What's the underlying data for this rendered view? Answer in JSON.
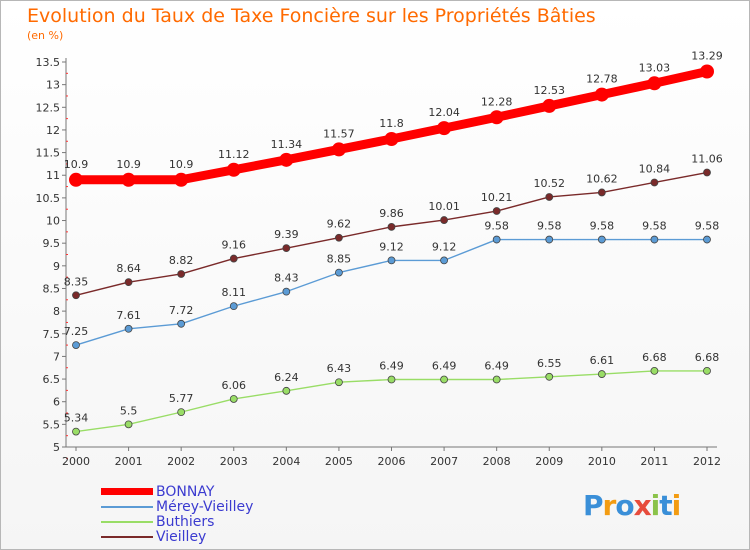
{
  "title": "Evolution du Taux de Taxe Foncière sur les Propriétés Bâties",
  "subtitle": "(en %)",
  "logo": "Proxiti",
  "chart_data": {
    "type": "line",
    "title": "Evolution du Taux de Taxe Foncière sur les Propriétés Bâties",
    "ylabel": "(en %)",
    "xlabel": "",
    "x": [
      "2000",
      "2001",
      "2002",
      "2003",
      "2004",
      "2005",
      "2006",
      "2007",
      "2008",
      "2009",
      "2010",
      "2011",
      "2012"
    ],
    "ylim": [
      5,
      13.5
    ],
    "yticks": [
      "5",
      "5.5",
      "6",
      "6.5",
      "7",
      "7.5",
      "8",
      "8.5",
      "9",
      "9.5",
      "10",
      "10.5",
      "11",
      "11.5",
      "12",
      "12.5",
      "13",
      "13.5"
    ],
    "grid": false,
    "legend_position": "bottom-left",
    "series": [
      {
        "name": "BONNAY",
        "color": "#ff0000",
        "values": [
          10.9,
          10.9,
          10.9,
          11.12,
          11.34,
          11.57,
          11.8,
          12.04,
          12.28,
          12.53,
          12.78,
          13.03,
          13.29
        ],
        "labels": [
          "10.9",
          "10.9",
          "10.9",
          "11.12",
          "11.34",
          "11.57",
          "11.8",
          "12.04",
          "12.28",
          "12.53",
          "12.78",
          "13.03",
          "13.29"
        ]
      },
      {
        "name": "Mérey-Vieilley",
        "color": "#5b9bd5",
        "values": [
          7.25,
          7.61,
          7.72,
          8.11,
          8.43,
          8.85,
          9.12,
          9.12,
          9.58,
          9.58,
          9.58,
          9.58,
          9.58
        ],
        "labels": [
          "7.25",
          "7.61",
          "7.72",
          "8.11",
          "8.43",
          "8.85",
          "9.12",
          "9.12",
          "9.58",
          "9.58",
          "9.58",
          "9.58",
          "9.58"
        ]
      },
      {
        "name": "Buthiers",
        "color": "#99dd66",
        "values": [
          5.34,
          5.5,
          5.77,
          6.06,
          6.24,
          6.43,
          6.49,
          6.49,
          6.49,
          6.55,
          6.61,
          6.68,
          6.68
        ],
        "labels": [
          "5.34",
          "5.5",
          "5.77",
          "6.06",
          "6.24",
          "6.43",
          "6.49",
          "6.49",
          "6.49",
          "6.55",
          "6.61",
          "6.68",
          "6.68"
        ]
      },
      {
        "name": "Vieilley",
        "color": "#7a2a2a",
        "values": [
          8.35,
          8.64,
          8.82,
          9.16,
          9.39,
          9.62,
          9.86,
          10.01,
          10.21,
          10.52,
          10.62,
          10.84,
          11.06
        ],
        "labels": [
          "8.35",
          "8.64",
          "8.82",
          "9.16",
          "9.39",
          "9.62",
          "9.86",
          "10.01",
          "10.21",
          "10.52",
          "10.62",
          "10.84",
          "11.06"
        ]
      }
    ]
  }
}
